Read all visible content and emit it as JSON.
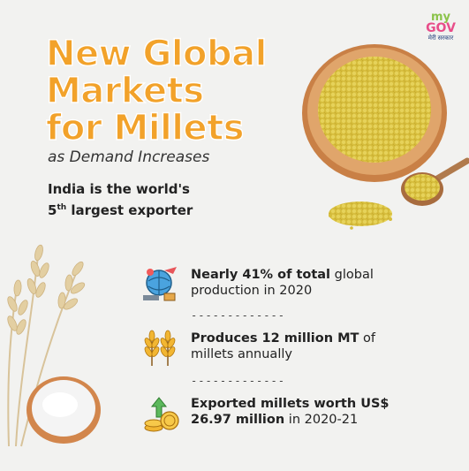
{
  "logo": {
    "my": "my",
    "gov": "GOV",
    "hindi": "मेरी सरकार"
  },
  "title": {
    "line1": "New Global",
    "line2": "Markets",
    "line3": "for Millets"
  },
  "subtitle": "as Demand Increases",
  "exporter": {
    "line1": "India is the world's",
    "rank_num": "5",
    "rank_suffix": "th",
    "line2_rest": " largest exporter"
  },
  "stats": [
    {
      "bold": "Nearly 41% of total",
      "rest": " global",
      "line2": "production in 2020",
      "icon": "globe-cargo-icon"
    },
    {
      "bold": "Produces 12 million MT",
      "rest": " of",
      "line2": "millets annually",
      "icon": "wheat-icon"
    },
    {
      "bold": "Exported millets worth US$",
      "rest": "",
      "line2_bold": "26.97 million",
      "line2": " in 2020-21",
      "icon": "coins-growth-icon"
    }
  ],
  "divider": "-------------",
  "colors": {
    "title": "#f2a22a",
    "millet": "#d8c041",
    "bowl": "#d9955a"
  }
}
